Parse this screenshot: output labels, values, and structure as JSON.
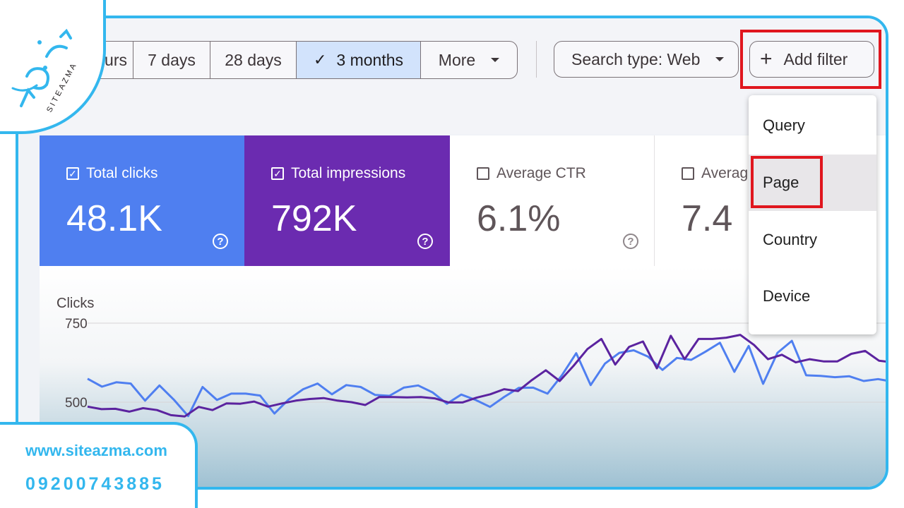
{
  "date_filters": {
    "items": [
      {
        "label": "urs",
        "active": false
      },
      {
        "label": "7 days",
        "active": false
      },
      {
        "label": "28 days",
        "active": false
      },
      {
        "label": "3 months",
        "active": true
      },
      {
        "label": "More",
        "active": false
      }
    ]
  },
  "search_type": {
    "label": "Search type: Web"
  },
  "add_filter": {
    "label": "Add filter"
  },
  "filter_menu": {
    "items": [
      "Query",
      "Page",
      "Country",
      "Device"
    ],
    "highlighted": "Page"
  },
  "metrics": [
    {
      "label": "Total clicks",
      "value": "48.1K",
      "checked": true,
      "bg": "#4f7ff0",
      "fg": "#ffffff"
    },
    {
      "label": "Total impressions",
      "value": "792K",
      "checked": true,
      "bg": "#6b2bb0",
      "fg": "#ffffff"
    },
    {
      "label": "Average CTR",
      "value": "6.1%",
      "checked": false,
      "bg": "#ffffff",
      "fg": "#5f5559"
    },
    {
      "label": "Averag",
      "value": "7.4",
      "checked": false,
      "bg": "#ffffff",
      "fg": "#5f5559"
    }
  ],
  "chart_data": {
    "type": "line",
    "ylabel": "Clicks",
    "yticks": [
      500,
      750
    ],
    "series": [
      {
        "color": "#4f7ff0",
        "values": [
          574,
          549,
          563,
          559,
          505,
          553,
          508,
          456,
          548,
          507,
          527,
          527,
          521,
          464,
          509,
          541,
          559,
          525,
          554,
          548,
          523,
          520,
          546,
          553,
          531,
          495,
          524,
          507,
          485,
          517,
          545,
          546,
          527,
          585,
          655,
          554,
          622,
          656,
          664,
          644,
          602,
          640,
          634,
          660,
          688,
          596,
          678,
          558,
          656,
          694,
          585,
          583,
          579,
          582,
          567,
          573,
          565,
          573
        ]
      },
      {
        "color": "#5b239f",
        "values": [
          486,
          478,
          479,
          470,
          481,
          475,
          459,
          455,
          485,
          475,
          496,
          495,
          502,
          486,
          496,
          505,
          510,
          513,
          505,
          500,
          491,
          516,
          516,
          515,
          516,
          512,
          499,
          499,
          514,
          525,
          541,
          535,
          570,
          601,
          567,
          615,
          668,
          700,
          619,
          675,
          692,
          607,
          710,
          636,
          700,
          700,
          704,
          713,
          681,
          636,
          650,
          626,
          636,
          629,
          629,
          653,
          662,
          631,
          626,
          614
        ]
      }
    ]
  },
  "logo": {
    "text": "SITEAZMA"
  },
  "contact": {
    "website": "www.siteazma.com",
    "phone": "09200743885"
  }
}
